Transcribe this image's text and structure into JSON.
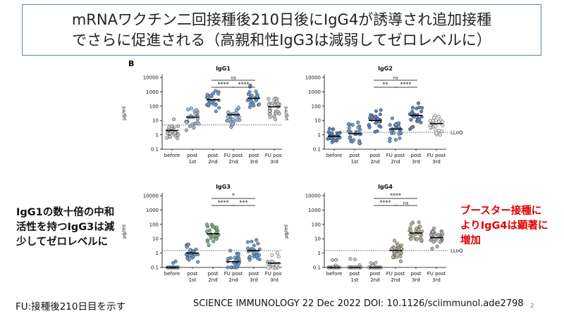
{
  "header": {
    "title_line1": "mRNAワクチン二回接種後210日後にIgG4が誘導され追加接種",
    "title_line2": "でさらに促進される（高親和性IgG3は減弱してゼロレベルに）"
  },
  "panel_label": "B",
  "notes": {
    "left": [
      "IgG1の数十倍の中和",
      "活性を持つIgG3は減",
      "少してゼロレベルに"
    ],
    "right": [
      "ブースター接種に",
      "よりIgG4は顕著に",
      "増加"
    ]
  },
  "footer": {
    "fu_note": "FU:接種後210日目を示す",
    "citation": "SCIENCE IMMUNOLOGY 22 Dec 2022 DOI: 10.1126/sciimmunol.ade2798",
    "page_number": "2"
  },
  "chart_data": [
    {
      "type": "scatter",
      "title": "IgG1",
      "ylabel": "µg/ml",
      "yscale": "log",
      "ylim": [
        0.1,
        10000
      ],
      "y_ticks": [
        "10000",
        "1000",
        "100",
        "10",
        "1",
        "0.1"
      ],
      "lloq": 5,
      "lloq_label": "LLoQ",
      "categories": [
        [
          "before"
        ],
        [
          "post",
          "1st"
        ],
        [
          "post",
          "2nd"
        ],
        [
          "FU post",
          "2nd"
        ],
        [
          "post",
          "3rd"
        ],
        [
          "FU post",
          "3rd"
        ]
      ],
      "medians": [
        2,
        17,
        280,
        25,
        350,
        90
      ],
      "fill": [
        "#c8c8c8",
        "#9dbbdc",
        "#6d9bcf",
        "#9dbbdc",
        "#6d9bcf",
        "#c8c8c8"
      ],
      "significance": [
        {
          "from": 2,
          "to": 4,
          "label": "ns",
          "level": 2
        },
        {
          "from": 2,
          "to": 3,
          "label": "****",
          "level": 1
        },
        {
          "from": 3,
          "to": 4,
          "label": "****",
          "level": 1
        }
      ]
    },
    {
      "type": "scatter",
      "title": "IgG2",
      "ylabel": "µg/ml",
      "yscale": "log",
      "ylim": [
        0.1,
        10000
      ],
      "y_ticks": [
        "10000",
        "1000",
        "100",
        "10",
        "1",
        "0.1"
      ],
      "lloq": 1.5,
      "lloq_label": "LLoQ",
      "categories": [
        [
          "before"
        ],
        [
          "post",
          "1st"
        ],
        [
          "post",
          "2nd"
        ],
        [
          "FU post",
          "2nd"
        ],
        [
          "post",
          "3rd"
        ],
        [
          "FU post",
          "3rd"
        ]
      ],
      "medians": [
        0.8,
        1.2,
        10,
        2.5,
        22,
        6
      ],
      "fill": [
        "#5d84b8",
        "#6d9bcf",
        "#5d84b8",
        "#6d9bcf",
        "#5d84b8",
        "#e8e8e8"
      ],
      "significance": [
        {
          "from": 2,
          "to": 4,
          "label": "ns",
          "level": 2
        },
        {
          "from": 2,
          "to": 3,
          "label": "**",
          "level": 1
        },
        {
          "from": 3,
          "to": 4,
          "label": "****",
          "level": 1
        }
      ]
    },
    {
      "type": "scatter",
      "title": "IgG3",
      "ylabel": "µg/ml",
      "yscale": "log",
      "ylim": [
        0.1,
        10000
      ],
      "y_ticks": [
        "10000",
        "1000",
        "100",
        "10",
        "1",
        "0.1"
      ],
      "lloq": 1.5,
      "lloq_label": "LLoQ",
      "categories": [
        [
          "before"
        ],
        [
          "post",
          "1st"
        ],
        [
          "post",
          "2nd"
        ],
        [
          "FU post",
          "2nd"
        ],
        [
          "post",
          "3rd"
        ],
        [
          "FU post",
          "3rd"
        ]
      ],
      "medians": [
        0.1,
        1.0,
        22,
        0.25,
        1.5,
        0.2
      ],
      "fill": [
        "#6d9bcf",
        "#6d9bcf",
        "#7fb48a",
        "#6d9bcf",
        "#6d9bcf",
        "#e8e8e8"
      ],
      "significance": [
        {
          "from": 2,
          "to": 4,
          "label": "*",
          "level": 2
        },
        {
          "from": 2,
          "to": 3,
          "label": "****",
          "level": 1
        },
        {
          "from": 3,
          "to": 4,
          "label": "***",
          "level": 1
        }
      ]
    },
    {
      "type": "scatter",
      "title": "IgG4",
      "ylabel": "µg/ml",
      "yscale": "log",
      "ylim": [
        0.1,
        10000
      ],
      "y_ticks": [
        "10000",
        "1000",
        "100",
        "10",
        "1",
        "0.1"
      ],
      "lloq": 1.5,
      "lloq_label": "LLoQ",
      "categories": [
        [
          "before"
        ],
        [
          "post",
          "1st"
        ],
        [
          "post",
          "2nd"
        ],
        [
          "FU post",
          "2nd"
        ],
        [
          "post",
          "3rd"
        ],
        [
          "FU post",
          "3rd"
        ]
      ],
      "medians": [
        0.1,
        0.1,
        0.1,
        1.5,
        25,
        12
      ],
      "fill": [
        "#c8c8c8",
        "#c8c8c8",
        "#c8c8c8",
        "#b9b59a",
        "#b9b59a",
        "#b0b0b0"
      ],
      "significance": [
        {
          "from": 2,
          "to": 4,
          "label": "****",
          "level": 2
        },
        {
          "from": 2,
          "to": 3,
          "label": "****",
          "level": 1
        },
        {
          "from": 3,
          "to": 4,
          "label": "ns",
          "level": 1
        }
      ]
    }
  ]
}
